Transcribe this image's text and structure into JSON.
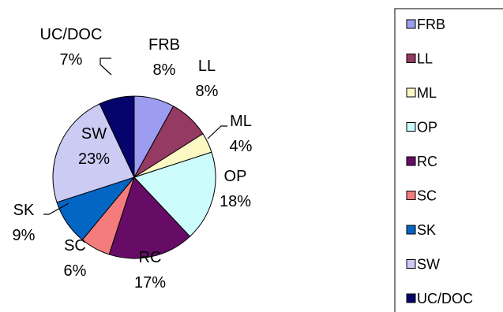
{
  "chart_data": {
    "type": "pie",
    "title": "",
    "legend_position": "right",
    "slices": [
      {
        "name": "FRB",
        "value": 8,
        "label": "8%",
        "color": "#9c9cf0"
      },
      {
        "name": "LL",
        "value": 8,
        "label": "8%",
        "color": "#953a62"
      },
      {
        "name": "ML",
        "value": 4,
        "label": "4%",
        "color": "#fcf8c4"
      },
      {
        "name": "OP",
        "value": 18,
        "label": "18%",
        "color": "#ccfcfc"
      },
      {
        "name": "RC",
        "value": 17,
        "label": "17%",
        "color": "#660c66"
      },
      {
        "name": "SC",
        "value": 6,
        "label": "6%",
        "color": "#f47c7c"
      },
      {
        "name": "SK",
        "value": 9,
        "label": "9%",
        "color": "#0466c4"
      },
      {
        "name": "SW",
        "value": 23,
        "label": "23%",
        "color": "#cccbf4"
      },
      {
        "name": "UC/DOC",
        "value": 7,
        "label": "7%",
        "color": "#04046c"
      }
    ]
  }
}
